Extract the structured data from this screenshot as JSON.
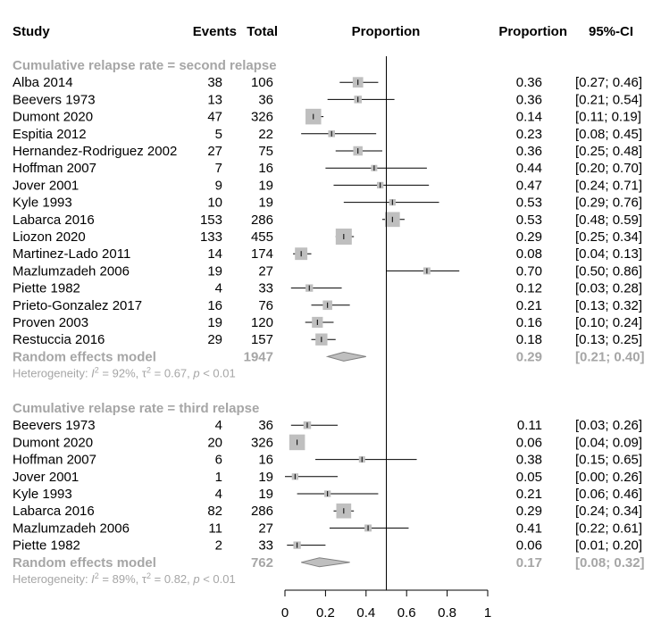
{
  "headers": {
    "study": "Study",
    "events": "Events",
    "total": "Total",
    "plot": "Proportion",
    "proportion": "Proportion",
    "ci": "95%-CI"
  },
  "colors": {
    "square": "#bfbfbf",
    "diamond": "#bfbfbf",
    "line": "#000000",
    "subtitle": "#a6a6a6",
    "text": "#000000"
  },
  "chart_data": {
    "type": "forest",
    "xlim": [
      0,
      1
    ],
    "x_ticks": [
      "0",
      "0.2",
      "0.4",
      "0.6",
      "0.8",
      "1"
    ],
    "reference_line": 0.5,
    "groups": [
      {
        "title": "Cumulative relapse rate = second relapse",
        "studies": [
          {
            "study": "Alba 2014",
            "events": "38",
            "total": "106",
            "proportion": 0.36,
            "lower": 0.27,
            "upper": 0.46,
            "prop_text": "0.36",
            "ci_text": "[0.27; 0.46]"
          },
          {
            "study": "Beevers 1973",
            "events": "13",
            "total": "36",
            "proportion": 0.36,
            "lower": 0.21,
            "upper": 0.54,
            "prop_text": "0.36",
            "ci_text": "[0.21; 0.54]"
          },
          {
            "study": "Dumont 2020",
            "events": "47",
            "total": "326",
            "proportion": 0.14,
            "lower": 0.11,
            "upper": 0.19,
            "prop_text": "0.14",
            "ci_text": "[0.11; 0.19]"
          },
          {
            "study": "Espitia 2012",
            "events": "5",
            "total": "22",
            "proportion": 0.23,
            "lower": 0.08,
            "upper": 0.45,
            "prop_text": "0.23",
            "ci_text": "[0.08; 0.45]"
          },
          {
            "study": "Hernandez-Rodriguez 2002",
            "events": "27",
            "total": "75",
            "proportion": 0.36,
            "lower": 0.25,
            "upper": 0.48,
            "prop_text": "0.36",
            "ci_text": "[0.25; 0.48]"
          },
          {
            "study": "Hoffman 2007",
            "events": "7",
            "total": "16",
            "proportion": 0.44,
            "lower": 0.2,
            "upper": 0.7,
            "prop_text": "0.44",
            "ci_text": "[0.20; 0.70]"
          },
          {
            "study": "Jover 2001",
            "events": "9",
            "total": "19",
            "proportion": 0.47,
            "lower": 0.24,
            "upper": 0.71,
            "prop_text": "0.47",
            "ci_text": "[0.24; 0.71]"
          },
          {
            "study": "Kyle 1993",
            "events": "10",
            "total": "19",
            "proportion": 0.53,
            "lower": 0.29,
            "upper": 0.76,
            "prop_text": "0.53",
            "ci_text": "[0.29; 0.76]"
          },
          {
            "study": "Labarca 2016",
            "events": "153",
            "total": "286",
            "proportion": 0.53,
            "lower": 0.48,
            "upper": 0.59,
            "prop_text": "0.53",
            "ci_text": "[0.48; 0.59]"
          },
          {
            "study": "Liozon 2020",
            "events": "133",
            "total": "455",
            "proportion": 0.29,
            "lower": 0.25,
            "upper": 0.34,
            "prop_text": "0.29",
            "ci_text": "[0.25; 0.34]"
          },
          {
            "study": "Martinez-Lado 2011",
            "events": "14",
            "total": "174",
            "proportion": 0.08,
            "lower": 0.04,
            "upper": 0.13,
            "prop_text": "0.08",
            "ci_text": "[0.04; 0.13]"
          },
          {
            "study": "Mazlumzadeh 2006",
            "events": "19",
            "total": "27",
            "proportion": 0.7,
            "lower": 0.5,
            "upper": 0.86,
            "prop_text": "0.70",
            "ci_text": "[0.50; 0.86]"
          },
          {
            "study": "Piette 1982",
            "events": "4",
            "total": "33",
            "proportion": 0.12,
            "lower": 0.03,
            "upper": 0.28,
            "prop_text": "0.12",
            "ci_text": "[0.03; 0.28]"
          },
          {
            "study": "Prieto-Gonzalez 2017",
            "events": "16",
            "total": "76",
            "proportion": 0.21,
            "lower": 0.13,
            "upper": 0.32,
            "prop_text": "0.21",
            "ci_text": "[0.13; 0.32]"
          },
          {
            "study": "Proven 2003",
            "events": "19",
            "total": "120",
            "proportion": 0.16,
            "lower": 0.1,
            "upper": 0.24,
            "prop_text": "0.16",
            "ci_text": "[0.10; 0.24]"
          },
          {
            "study": "Restuccia 2016",
            "events": "29",
            "total": "157",
            "proportion": 0.18,
            "lower": 0.13,
            "upper": 0.25,
            "prop_text": "0.18",
            "ci_text": "[0.13; 0.25]"
          }
        ],
        "pooled": {
          "label": "Random effects model",
          "total": "1947",
          "proportion": 0.29,
          "lower": 0.21,
          "upper": 0.4,
          "prop_text": "0.29",
          "ci_text": "[0.21; 0.40]"
        },
        "heterogeneity": {
          "prefix": "Heterogeneity: ",
          "i2_var": "I",
          "i2_sup": "2",
          "i2_val": " = 92%, ",
          "tau_var": "τ",
          "tau_sup": "2",
          "tau_val": " = 0.67, ",
          "p_var": "p",
          "p_val": " < 0.01"
        }
      },
      {
        "title": "Cumulative relapse rate = third relapse",
        "studies": [
          {
            "study": "Beevers 1973",
            "events": "4",
            "total": "36",
            "proportion": 0.11,
            "lower": 0.03,
            "upper": 0.26,
            "prop_text": "0.11",
            "ci_text": "[0.03; 0.26]"
          },
          {
            "study": "Dumont 2020",
            "events": "20",
            "total": "326",
            "proportion": 0.06,
            "lower": 0.04,
            "upper": 0.09,
            "prop_text": "0.06",
            "ci_text": "[0.04; 0.09]"
          },
          {
            "study": "Hoffman 2007",
            "events": "6",
            "total": "16",
            "proportion": 0.38,
            "lower": 0.15,
            "upper": 0.65,
            "prop_text": "0.38",
            "ci_text": "[0.15; 0.65]"
          },
          {
            "study": "Jover 2001",
            "events": "1",
            "total": "19",
            "proportion": 0.05,
            "lower": 0.0,
            "upper": 0.26,
            "prop_text": "0.05",
            "ci_text": "[0.00; 0.26]"
          },
          {
            "study": "Kyle 1993",
            "events": "4",
            "total": "19",
            "proportion": 0.21,
            "lower": 0.06,
            "upper": 0.46,
            "prop_text": "0.21",
            "ci_text": "[0.06; 0.46]"
          },
          {
            "study": "Labarca 2016",
            "events": "82",
            "total": "286",
            "proportion": 0.29,
            "lower": 0.24,
            "upper": 0.34,
            "prop_text": "0.29",
            "ci_text": "[0.24; 0.34]"
          },
          {
            "study": "Mazlumzadeh 2006",
            "events": "11",
            "total": "27",
            "proportion": 0.41,
            "lower": 0.22,
            "upper": 0.61,
            "prop_text": "0.41",
            "ci_text": "[0.22; 0.61]"
          },
          {
            "study": "Piette 1982",
            "events": "2",
            "total": "33",
            "proportion": 0.06,
            "lower": 0.01,
            "upper": 0.2,
            "prop_text": "0.06",
            "ci_text": "[0.01; 0.20]"
          }
        ],
        "pooled": {
          "label": "Random effects model",
          "total": "762",
          "proportion": 0.17,
          "lower": 0.08,
          "upper": 0.32,
          "prop_text": "0.17",
          "ci_text": "[0.08; 0.32]"
        },
        "heterogeneity": {
          "prefix": "Heterogeneity: ",
          "i2_var": "I",
          "i2_sup": "2",
          "i2_val": " = 89%, ",
          "tau_var": "τ",
          "tau_sup": "2",
          "tau_val": " = 0.82, ",
          "p_var": "p",
          "p_val": " < 0.01"
        }
      }
    ]
  }
}
